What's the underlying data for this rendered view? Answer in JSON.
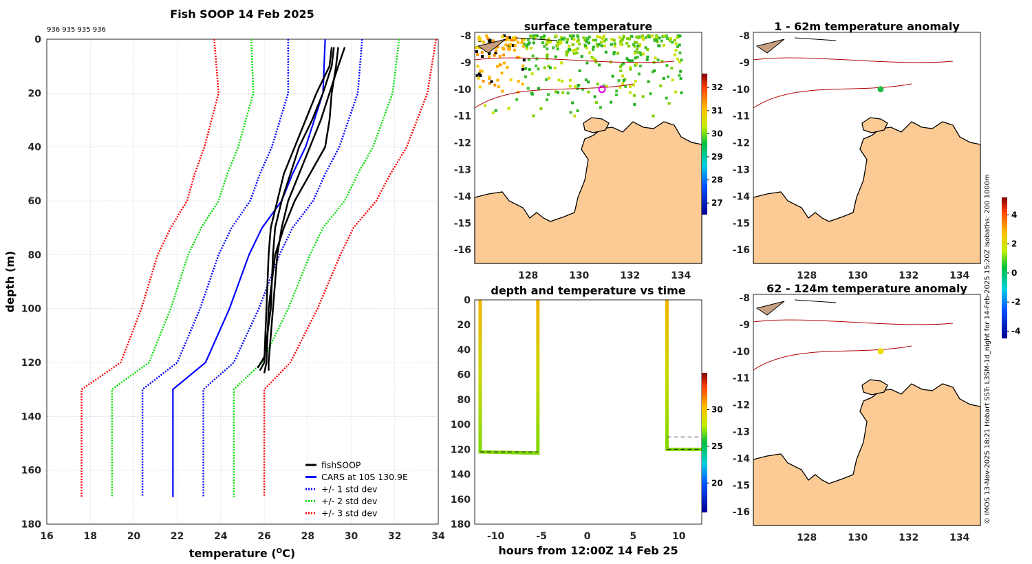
{
  "chart_data": [
    {
      "type": "line",
      "id": "profile",
      "title": "Fish SOOP 14 Feb 2025",
      "subtitle": "936 935 935 936",
      "xlabel": "temperature (",
      "xlabel_unit": "O",
      "xlabel_tail": "C)",
      "ylabel": "depth (m)",
      "xlim": [
        16,
        34
      ],
      "ylim": [
        0,
        180
      ],
      "xticks": [
        16,
        18,
        20,
        22,
        24,
        26,
        28,
        30,
        32,
        34
      ],
      "yticks": [
        0,
        20,
        40,
        60,
        80,
        100,
        120,
        140,
        160,
        180
      ],
      "grid": true,
      "cars": {
        "depth": [
          0,
          20,
          40,
          50,
          60,
          70,
          80,
          100,
          120,
          130,
          170
        ],
        "mean": [
          28.8,
          28.7,
          27.9,
          27.3,
          26.8,
          25.9,
          25.3,
          24.4,
          23.3,
          21.8,
          21.8
        ],
        "sd": [
          1.7,
          1.6,
          1.55,
          1.5,
          1.45,
          1.4,
          1.4,
          1.35,
          1.3,
          1.4,
          1.4
        ]
      },
      "fishsoop": [
        {
          "depth": [
            3,
            10,
            20,
            30,
            40,
            50,
            60,
            70,
            80,
            100,
            120,
            123
          ],
          "temp": [
            29.7,
            29.4,
            29.0,
            28.6,
            28.1,
            27.6,
            27.1,
            26.8,
            26.6,
            26.4,
            26.2,
            26.2
          ]
        },
        {
          "depth": [
            3,
            10,
            20,
            30,
            40,
            50,
            60,
            70,
            80,
            100,
            118,
            122
          ],
          "temp": [
            29.2,
            29.1,
            28.7,
            28.2,
            27.6,
            27.2,
            26.8,
            26.5,
            26.4,
            26.3,
            26.0,
            25.7
          ]
        },
        {
          "depth": [
            3,
            10,
            20,
            30,
            40,
            50,
            60,
            70,
            80,
            100,
            120,
            124
          ],
          "temp": [
            29.4,
            29.3,
            29.1,
            29.0,
            28.8,
            28.1,
            27.4,
            26.9,
            26.5,
            26.2,
            26.1,
            26.0
          ]
        },
        {
          "depth": [
            3,
            10,
            20,
            30,
            40,
            50,
            60,
            70,
            80,
            100,
            120,
            123
          ],
          "temp": [
            29.1,
            29.0,
            28.4,
            27.9,
            27.4,
            26.9,
            26.6,
            26.3,
            26.2,
            26.1,
            26.0,
            25.8
          ]
        }
      ],
      "legend": [
        "fishSOOP",
        "CARS at 10S 130.9E",
        "+/- 1 std dev",
        "+/- 2 std dev",
        "+/- 3 std dev"
      ],
      "legend_position": "bottom-right",
      "colors": {
        "fishsoop": "#000000",
        "cars": "#0000ff",
        "sd1": "#0000ff",
        "sd2": "#00dd00",
        "sd3": "#ff0000"
      }
    },
    {
      "type": "heatmap",
      "id": "sst",
      "title": "surface temperature",
      "lon_ticks": [
        128,
        130,
        132,
        134
      ],
      "lat_ticks": [
        -8,
        -9,
        -10,
        -11,
        -12,
        -13,
        -14,
        -15,
        -16
      ],
      "colorbar": {
        "ticks": [
          32,
          31,
          30,
          29,
          28,
          27
        ],
        "range": [
          26.5,
          32.6
        ]
      },
      "marker": {
        "lon": 130.9,
        "lat": -10
      }
    },
    {
      "type": "scatter",
      "id": "depth_time",
      "title": "depth and temperature vs time",
      "xlabel": "hours from 12:00Z 14 Feb 25",
      "xlim": [
        -12.3,
        12.5
      ],
      "ylim": [
        0,
        180
      ],
      "xticks": [
        -10,
        -5,
        0,
        5,
        10
      ],
      "yticks": [
        0,
        20,
        40,
        60,
        80,
        100,
        120,
        140,
        160,
        180
      ],
      "casts": [
        {
          "hours": [
            -11.7,
            -11.7,
            -5.5,
            -5.4,
            -5.4
          ],
          "depth": [
            0,
            122,
            123,
            123,
            0
          ]
        },
        {
          "hours": [
            8.7,
            8.7,
            12.5
          ],
          "depth": [
            0,
            120,
            120
          ]
        }
      ],
      "colorbar": {
        "ticks": [
          30,
          25,
          20
        ],
        "range": [
          16,
          35
        ]
      }
    },
    {
      "type": "heatmap",
      "id": "anom1",
      "title": "1 - 62m temperature anomaly",
      "lon_ticks": [
        128,
        130,
        132,
        134
      ],
      "lat_ticks": [
        -8,
        -9,
        -10,
        -11,
        -12,
        -13,
        -14,
        -15,
        -16
      ],
      "marker": {
        "lon": 130.9,
        "lat": -10,
        "color": "#22bb44"
      }
    },
    {
      "type": "heatmap",
      "id": "anom2",
      "title": "62 - 124m temperature anomaly",
      "lon_ticks": [
        128,
        130,
        132,
        134
      ],
      "lat_ticks": [
        -8,
        -9,
        -10,
        -11,
        -12,
        -13,
        -14,
        -15,
        -16
      ],
      "marker": {
        "lon": 130.9,
        "lat": -10,
        "color": "#eedd00"
      },
      "colorbar": {
        "ticks": [
          4,
          2,
          0,
          -2,
          -4
        ],
        "range": [
          -4.5,
          5.2
        ]
      }
    }
  ],
  "side_text": "© IMOS 13-Nov-2025 18:21 Hobart SST: L3SM-1d_night for 14-Feb-2025 15:20Z isobaths: 200  1000m"
}
